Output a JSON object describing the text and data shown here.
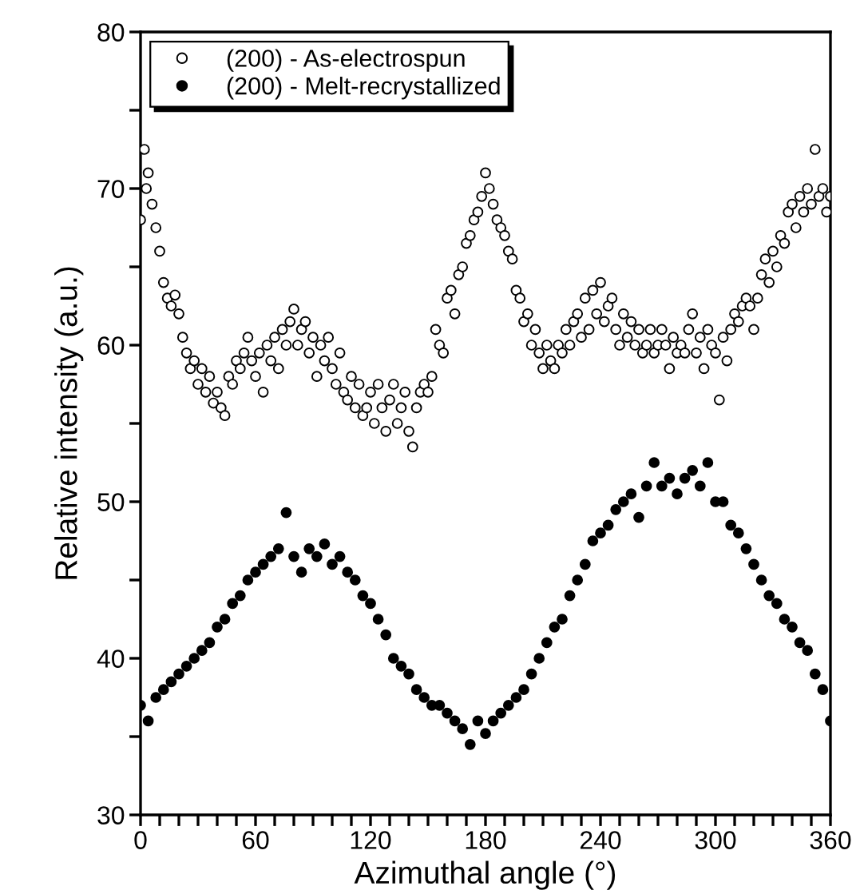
{
  "chart_data": {
    "type": "scatter",
    "xlabel": "Azimuthal angle (°)",
    "ylabel": "Relative intensity (a.u.)",
    "xlim": [
      0,
      360
    ],
    "ylim": [
      30,
      80
    ],
    "xticks": [
      0,
      {
        "value": 10,
        "label": null
      },
      {
        "value": 20,
        "label": null
      },
      {
        "value": 30,
        "label": null
      },
      {
        "value": 40,
        "label": null
      },
      {
        "value": 50,
        "label": null
      },
      60,
      {
        "value": 70,
        "label": null
      },
      {
        "value": 80,
        "label": null
      },
      {
        "value": 90,
        "label": null
      },
      {
        "value": 100,
        "label": null
      },
      {
        "value": 110,
        "label": null
      },
      120,
      {
        "value": 130,
        "label": null
      },
      {
        "value": 140,
        "label": null
      },
      {
        "value": 150,
        "label": null
      },
      {
        "value": 160,
        "label": null
      },
      {
        "value": 170,
        "label": null
      },
      180,
      {
        "value": 190,
        "label": null
      },
      {
        "value": 200,
        "label": null
      },
      {
        "value": 210,
        "label": null
      },
      {
        "value": 220,
        "label": null
      },
      {
        "value": 230,
        "label": null
      },
      240,
      {
        "value": 250,
        "label": null
      },
      {
        "value": 260,
        "label": null
      },
      {
        "value": 270,
        "label": null
      },
      {
        "value": 280,
        "label": null
      },
      {
        "value": 290,
        "label": null
      },
      300,
      {
        "value": 310,
        "label": null
      },
      {
        "value": 320,
        "label": null
      },
      {
        "value": 330,
        "label": null
      },
      {
        "value": 340,
        "label": null
      },
      {
        "value": 350,
        "label": null
      },
      360
    ],
    "yticks": [
      30,
      {
        "value": 35,
        "label": null
      },
      40,
      {
        "value": 45,
        "label": null
      },
      50,
      {
        "value": 55,
        "label": null
      },
      60,
      {
        "value": 65,
        "label": null
      },
      70,
      {
        "value": 75,
        "label": null
      },
      80
    ],
    "marker": "circle",
    "grid": false,
    "legend": "top left",
    "series": [
      {
        "name": "(200) - As-electrospun",
        "color": "#000000",
        "x": [
          0,
          2,
          3,
          4,
          6,
          8,
          10,
          12,
          14,
          16,
          18,
          20,
          22,
          24,
          26,
          28,
          30,
          32,
          34,
          36,
          38,
          40,
          42,
          44,
          46,
          48,
          50,
          52,
          54,
          56,
          58,
          60,
          62,
          64,
          66,
          68,
          70,
          72,
          74,
          76,
          78,
          80,
          82,
          84,
          86,
          88,
          90,
          92,
          94,
          96,
          98,
          100,
          102,
          104,
          106,
          108,
          110,
          112,
          114,
          116,
          118,
          120,
          122,
          124,
          126,
          128,
          130,
          132,
          134,
          136,
          138,
          140,
          142,
          144,
          146,
          148,
          150,
          152,
          154,
          156,
          158,
          160,
          162,
          164,
          166,
          168,
          170,
          172,
          174,
          176,
          178,
          180,
          182,
          184,
          186,
          188,
          190,
          192,
          194,
          196,
          198,
          200,
          202,
          204,
          206,
          208,
          210,
          212,
          214,
          216,
          218,
          220,
          222,
          224,
          226,
          228,
          230,
          232,
          234,
          236,
          238,
          240,
          242,
          244,
          246,
          248,
          250,
          252,
          254,
          256,
          258,
          260,
          262,
          264,
          266,
          268,
          270,
          272,
          274,
          276,
          278,
          280,
          282,
          284,
          286,
          288,
          290,
          292,
          294,
          296,
          298,
          300,
          302,
          304,
          306,
          308,
          310,
          312,
          314,
          316,
          318,
          320,
          322,
          324,
          326,
          328,
          330,
          332,
          334,
          336,
          338,
          340,
          342,
          344,
          346,
          348,
          350,
          352,
          354,
          356,
          358,
          360
        ],
        "values": [
          68,
          72.5,
          70,
          71,
          69,
          67.5,
          66,
          64,
          63,
          62.5,
          63.2,
          62,
          60.5,
          59.5,
          58.5,
          59,
          57.5,
          58.5,
          57,
          58,
          56.3,
          57,
          56,
          55.5,
          58,
          57.5,
          59,
          58.5,
          59.5,
          60.5,
          59,
          58,
          59.5,
          57,
          60,
          59,
          60.5,
          58.5,
          61,
          60,
          61.5,
          62.3,
          60,
          61,
          61.5,
          59.5,
          60.5,
          58,
          60,
          59,
          60.5,
          58.5,
          57.5,
          59.5,
          57,
          56.5,
          58,
          56,
          57.5,
          55.5,
          56,
          57,
          55,
          57.5,
          56,
          54.5,
          56.5,
          57.5,
          55,
          56,
          57,
          54.5,
          53.5,
          56,
          57,
          57.5,
          57,
          58,
          61,
          60,
          59.5,
          63,
          63.5,
          62,
          64.5,
          65,
          66.5,
          67,
          68,
          68.5,
          69.5,
          71,
          70,
          69,
          68,
          67.5,
          67,
          66,
          65.5,
          63.5,
          63,
          61.5,
          62,
          60,
          61,
          59.5,
          58.5,
          60,
          59,
          58.5,
          60,
          59.5,
          61,
          60,
          61.5,
          62,
          60.5,
          63,
          61,
          63.5,
          62,
          64,
          61.5,
          62.5,
          63,
          61,
          60,
          62,
          60.5,
          61.5,
          60,
          61,
          59.5,
          60,
          61,
          59.5,
          60,
          61,
          60,
          58.5,
          60.5,
          59.5,
          60,
          59.5,
          61,
          62,
          59.5,
          60.5,
          58.5,
          61,
          60,
          59.5,
          56.5,
          60.5,
          59,
          61,
          62,
          61.5,
          62.5,
          63,
          62.5,
          61,
          63,
          64.5,
          65.5,
          64,
          66,
          65,
          67,
          66.5,
          68.5,
          69,
          67.5,
          69.5,
          68.5,
          70,
          69,
          72.5,
          69.5,
          70,
          68.5,
          69.5
        ]
      },
      {
        "name": "(200) - Melt-recrystallized",
        "color": "#000000",
        "x": [
          0,
          4,
          8,
          12,
          16,
          20,
          24,
          28,
          32,
          36,
          40,
          44,
          48,
          52,
          56,
          60,
          64,
          68,
          72,
          76,
          80,
          84,
          88,
          92,
          96,
          100,
          104,
          108,
          112,
          116,
          120,
          124,
          128,
          132,
          136,
          140,
          144,
          148,
          152,
          156,
          160,
          164,
          168,
          172,
          176,
          180,
          184,
          188,
          192,
          196,
          200,
          204,
          208,
          212,
          216,
          220,
          224,
          228,
          232,
          236,
          240,
          244,
          248,
          252,
          256,
          260,
          264,
          268,
          272,
          276,
          280,
          284,
          288,
          292,
          296,
          300,
          304,
          308,
          312,
          316,
          320,
          324,
          328,
          332,
          336,
          340,
          344,
          348,
          352,
          356,
          360
        ],
        "values": [
          37,
          36,
          37.5,
          38,
          38.5,
          39,
          39.5,
          40,
          40.5,
          41,
          42,
          42.5,
          43.5,
          44,
          45,
          45.5,
          46,
          46.5,
          47,
          49.3,
          46.5,
          45.5,
          47,
          46.5,
          47.3,
          46,
          46.5,
          45.5,
          45,
          44,
          43.5,
          42.5,
          41.5,
          40,
          39.5,
          39,
          38,
          37.5,
          37,
          37,
          36.5,
          36,
          35.5,
          34.5,
          36,
          35.2,
          36,
          36.5,
          37,
          37.5,
          38,
          39,
          40,
          41,
          42,
          42.5,
          44,
          45,
          46,
          47.5,
          48,
          48.5,
          49.5,
          50,
          50.5,
          49,
          51,
          52.5,
          51,
          51.5,
          50.5,
          51.5,
          52,
          51,
          52.5,
          50,
          50,
          48.5,
          48,
          47,
          46,
          45,
          44,
          43.5,
          42.5,
          42,
          41,
          40.5,
          39,
          38,
          36
        ]
      }
    ]
  }
}
